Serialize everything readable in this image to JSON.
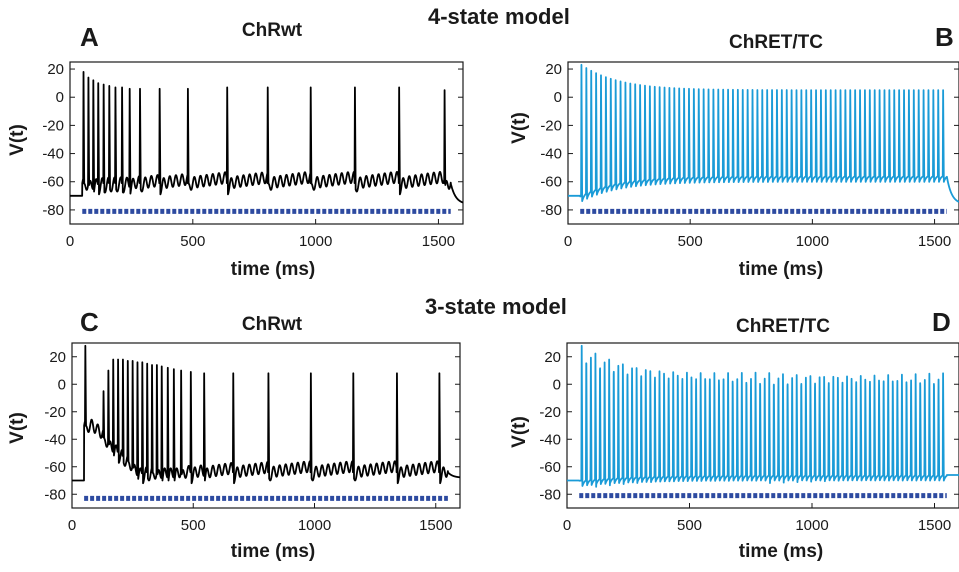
{
  "figure": {
    "titles": [
      "4-state model",
      "3-state model"
    ]
  },
  "chart_data": [
    {
      "type": "line",
      "panel": "A",
      "section": "4-state model",
      "title": "ChRwt",
      "xlabel": "time (ms)",
      "ylabel": "V(t)",
      "xlim": [
        0,
        1600
      ],
      "ylim": [
        -90,
        25
      ],
      "xticks": [
        0,
        500,
        1000,
        1500
      ],
      "yticks": [
        20,
        0,
        -20,
        -40,
        -60,
        -80
      ],
      "color": "#000000",
      "stimulus": {
        "start": 50,
        "end": 1550,
        "level": -81,
        "color": "#2d4aa0"
      },
      "trace": {
        "baseline": -70,
        "stim_start": 50,
        "stim_end": 1550,
        "end_level": -76,
        "spike_times": [
          55,
          75,
          95,
          115,
          137,
          160,
          185,
          212,
          243,
          285,
          365,
          480,
          640,
          805,
          980,
          1160,
          1340,
          1525
        ],
        "spike_peaks": [
          18,
          14,
          12,
          10,
          9,
          8,
          7,
          7,
          6,
          6,
          6,
          6,
          7,
          7,
          7,
          7,
          7,
          5
        ],
        "trough": -61,
        "osc_amp": 4,
        "osc_period": 25
      },
      "legend": "none"
    },
    {
      "type": "line",
      "panel": "B",
      "section": "4-state model",
      "title": "ChRET/TC",
      "xlabel": "time (ms)",
      "ylabel": "V(t)",
      "xlim": [
        0,
        1600
      ],
      "ylim": [
        -90,
        25
      ],
      "xticks": [
        0,
        500,
        1000,
        1500
      ],
      "yticks": [
        20,
        0,
        -20,
        -40,
        -60,
        -80
      ],
      "color": "#1a9bd7",
      "stimulus": {
        "start": 50,
        "end": 1550,
        "level": -81,
        "color": "#2d4aa0"
      },
      "trace": {
        "baseline": -70,
        "stim_start": 50,
        "stim_end": 1550,
        "end_level": -76,
        "spike_count": 75,
        "first_spike": 55,
        "last_spike": 1535,
        "peak_start": 23,
        "peak_end": 5,
        "peak_decay": 150,
        "trough_start": -70,
        "trough_end": -56
      },
      "legend": "none"
    },
    {
      "type": "line",
      "panel": "C",
      "section": "3-state model",
      "title": "ChRwt",
      "xlabel": "time (ms)",
      "ylabel": "V(t)",
      "xlim": [
        0,
        1600
      ],
      "ylim": [
        -90,
        30
      ],
      "xticks": [
        0,
        500,
        1000,
        1500
      ],
      "yticks": [
        20,
        0,
        -20,
        -40,
        -60,
        -80
      ],
      "color": "#000000",
      "stimulus": {
        "start": 50,
        "end": 1550,
        "level": -83,
        "color": "#2d4aa0"
      },
      "trace": {
        "baseline": -70,
        "stim_start": 50,
        "stim_end": 1550,
        "end_level": -68,
        "spike_times": [
          55,
          130,
          150,
          170,
          190,
          210,
          230,
          250,
          270,
          290,
          310,
          330,
          350,
          370,
          395,
          420,
          450,
          490,
          545,
          665,
          810,
          985,
          1160,
          1340,
          1515
        ],
        "spike_peaks": [
          28,
          -5,
          10,
          18,
          18,
          18,
          17,
          17,
          16,
          16,
          15,
          14,
          14,
          13,
          12,
          11,
          10,
          9,
          8,
          8,
          8,
          8,
          8,
          8,
          8
        ],
        "early_plateau": -30,
        "trough": -64,
        "osc_amp": 4,
        "osc_period": 25
      },
      "legend": "none"
    },
    {
      "type": "line",
      "panel": "D",
      "section": "3-state model",
      "title": "ChRET/TC",
      "xlabel": "time (ms)",
      "ylabel": "V(t)",
      "xlim": [
        0,
        1600
      ],
      "ylim": [
        -90,
        30
      ],
      "xticks": [
        0,
        500,
        1000,
        1500
      ],
      "yticks": [
        20,
        0,
        -20,
        -40,
        -60,
        -80
      ],
      "color": "#1a9bd7",
      "stimulus": {
        "start": 50,
        "end": 1550,
        "level": -81,
        "color": "#2d4aa0"
      },
      "trace": {
        "baseline": -70,
        "stim_start": 50,
        "stim_end": 1550,
        "end_level": -66,
        "spike_count": 80,
        "first_spike": 60,
        "last_spike": 1535,
        "peak_start": 28,
        "peak_end": 8,
        "peak_decay": 200,
        "trough_start": -70,
        "trough_end": -66
      },
      "legend": "none"
    }
  ]
}
